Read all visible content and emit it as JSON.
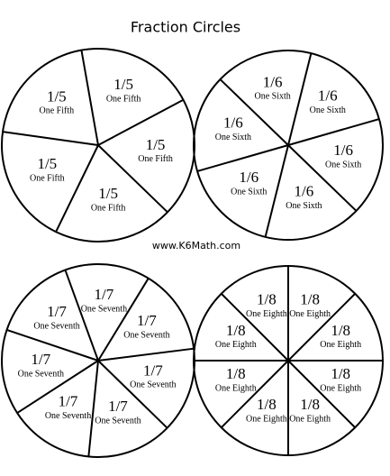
{
  "header": {
    "title": "Fraction Circles"
  },
  "circles": [
    {
      "segments": [
        {
          "fraction": "1/5",
          "name": "One Fifth"
        },
        {
          "fraction": "1/5",
          "name": "One Fifth"
        },
        {
          "fraction": "1/5",
          "name": "One Fifth"
        },
        {
          "fraction": "1/5",
          "name": "One Fifth"
        },
        {
          "fraction": "1/5",
          "name": "One Fifth"
        }
      ]
    },
    {
      "segments": [
        {
          "fraction": "1/6",
          "name": "One Sixth"
        },
        {
          "fraction": "1/6",
          "name": "One Sixth"
        },
        {
          "fraction": "1/6",
          "name": "One Sixth"
        },
        {
          "fraction": "1/6",
          "name": "One Sixth"
        },
        {
          "fraction": "1/6",
          "name": "One Sixth"
        },
        {
          "fraction": "1/6",
          "name": "One Sixth"
        }
      ]
    },
    {
      "segments": [
        {
          "fraction": "1/7",
          "name": "One Seventh"
        },
        {
          "fraction": "1/7",
          "name": "One Seventh"
        },
        {
          "fraction": "1/7",
          "name": "One Seventh"
        },
        {
          "fraction": "1/7",
          "name": "One Seventh"
        },
        {
          "fraction": "1/7",
          "name": "One Seventh"
        },
        {
          "fraction": "1/7",
          "name": "One Seventh"
        },
        {
          "fraction": "1/7",
          "name": "One Seventh"
        }
      ]
    },
    {
      "segments": [
        {
          "fraction": "1/8",
          "name": "One Eighth"
        },
        {
          "fraction": "1/8",
          "name": "One Eighth"
        },
        {
          "fraction": "1/8",
          "name": "One Eighth"
        },
        {
          "fraction": "1/8",
          "name": "One Eighth"
        },
        {
          "fraction": "1/8",
          "name": "One Eighth"
        },
        {
          "fraction": "1/8",
          "name": "One Eighth"
        },
        {
          "fraction": "1/8",
          "name": "One Eighth"
        },
        {
          "fraction": "1/8",
          "name": "One Eighth"
        }
      ]
    }
  ],
  "footer": {
    "url": "www.K6Math.com"
  }
}
